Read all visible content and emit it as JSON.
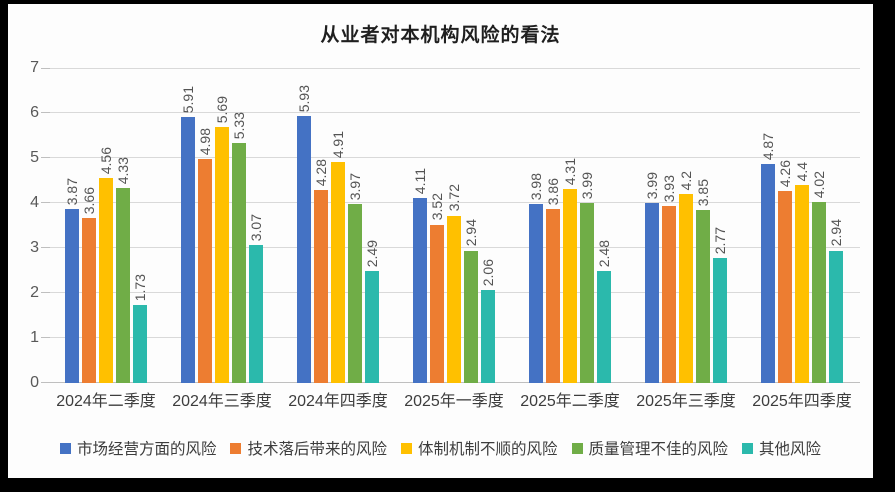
{
  "title": "从业者对本机构风险的看法",
  "chart_data": {
    "type": "bar",
    "title": "从业者对本机构风险的看法",
    "xlabel": "",
    "ylabel": "",
    "ylim": [
      0,
      7
    ],
    "ytick_interval": 1,
    "yticks": [
      0,
      1,
      2,
      3,
      4,
      5,
      6,
      7
    ],
    "grid": true,
    "legend_position": "bottom",
    "data_labels_rotation": -90,
    "categories": [
      "2024年二季度",
      "2024年三季度",
      "2024年四季度",
      "2025年一季度",
      "2025年二季度",
      "2025年三季度",
      "2025年四季度"
    ],
    "series": [
      {
        "name": "市场经营方面的风险",
        "color": "#4472C4",
        "values": [
          3.87,
          5.91,
          5.93,
          4.11,
          3.98,
          3.99,
          4.87
        ],
        "labels": [
          "3.87",
          "5.91",
          "5.93",
          "4.11",
          "3.98",
          "3.99",
          "4.87"
        ]
      },
      {
        "name": "技术落后带来的风险",
        "color": "#ED7D31",
        "values": [
          3.66,
          4.98,
          4.28,
          3.52,
          3.86,
          3.93,
          4.26
        ],
        "labels": [
          "3.66",
          "4.98",
          "4.28",
          "3.52",
          "3.86",
          "3.93",
          "4.26"
        ]
      },
      {
        "name": "体制机制不顺的风险",
        "color": "#FFC000",
        "values": [
          4.56,
          5.69,
          4.91,
          3.72,
          4.31,
          4.2,
          4.4
        ],
        "labels": [
          "4.56",
          "5.69",
          "4.91",
          "3.72",
          "4.31",
          "4.2",
          "4.4"
        ]
      },
      {
        "name": "质量管理不佳的风险",
        "color": "#70AD47",
        "values": [
          4.33,
          5.33,
          3.97,
          2.94,
          3.99,
          3.85,
          4.02
        ],
        "labels": [
          "4.33",
          "5.33",
          "3.97",
          "2.94",
          "3.99",
          "3.85",
          "4.02"
        ]
      },
      {
        "name": "其他风险",
        "color": "#2BB9AC",
        "values": [
          1.73,
          3.07,
          2.49,
          2.06,
          2.48,
          2.77,
          2.94
        ],
        "labels": [
          "1.73",
          "3.07",
          "2.49",
          "2.06",
          "2.48",
          "2.77",
          "2.94"
        ]
      }
    ]
  }
}
